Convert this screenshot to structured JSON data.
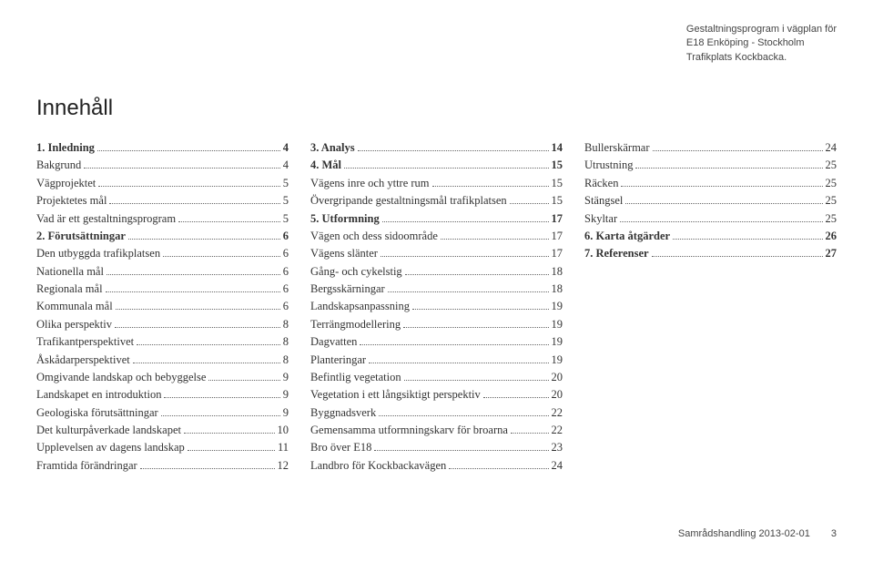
{
  "header": {
    "line1": "Gestaltningsprogram i vägplan för",
    "line2": "E18 Enköping - Stockholm",
    "line3": "Trafikplats Kockbacka."
  },
  "title": "Innehåll",
  "toc": {
    "col1": [
      {
        "label": "1. Inledning",
        "page": "4",
        "bold": true
      },
      {
        "label": "Bakgrund",
        "page": "4"
      },
      {
        "label": "Vägprojektet",
        "page": "5"
      },
      {
        "label": "Projektetes mål",
        "page": "5"
      },
      {
        "label": "Vad är ett gestaltningsprogram",
        "page": "5"
      },
      {
        "label": "2. Förutsättningar",
        "page": "6",
        "bold": true
      },
      {
        "label": "Den utbyggda trafikplatsen",
        "page": "6"
      },
      {
        "label": "Nationella mål",
        "page": "6"
      },
      {
        "label": "Regionala mål",
        "page": "6"
      },
      {
        "label": "Kommunala mål",
        "page": "6"
      },
      {
        "label": "Olika perspektiv",
        "page": "8"
      },
      {
        "label": "Trafikantperspektivet",
        "page": "8"
      },
      {
        "label": "Åskådarperspektivet",
        "page": "8"
      },
      {
        "label": "Omgivande landskap och bebyggelse",
        "page": "9"
      },
      {
        "label": "Landskapet en introduktion",
        "page": "9"
      },
      {
        "label": "Geologiska förutsättningar",
        "page": "9"
      },
      {
        "label": "Det kulturpåverkade landskapet",
        "page": "10"
      },
      {
        "label": "Upplevelsen av dagens landskap",
        "page": "11"
      },
      {
        "label": "Framtida förändringar",
        "page": "12"
      }
    ],
    "col2": [
      {
        "label": "3. Analys",
        "page": "14",
        "bold": true
      },
      {
        "label": "4. Mål",
        "page": "15",
        "bold": true
      },
      {
        "label": "Vägens inre och yttre rum",
        "page": "15"
      },
      {
        "label": "Övergripande gestaltningsmål trafikplatsen",
        "page": "15"
      },
      {
        "label": "5. Utformning",
        "page": "17",
        "bold": true
      },
      {
        "label": "Vägen och dess sidoområde",
        "page": "17"
      },
      {
        "label": "Vägens slänter",
        "page": "17"
      },
      {
        "label": "Gång- och cykelstig",
        "page": "18"
      },
      {
        "label": "Bergsskärningar",
        "page": "18"
      },
      {
        "label": "Landskapsanpassning",
        "page": "19"
      },
      {
        "label": "Terrängmodellering",
        "page": "19"
      },
      {
        "label": "Dagvatten",
        "page": "19"
      },
      {
        "label": "Planteringar",
        "page": "19"
      },
      {
        "label": "Befintlig vegetation",
        "page": "20"
      },
      {
        "label": "Vegetation i ett långsiktigt perspektiv",
        "page": "20"
      },
      {
        "label": "Byggnadsverk",
        "page": "22"
      },
      {
        "label": "Gemensamma utformningskarv för broarna",
        "page": "22"
      },
      {
        "label": "Bro över E18",
        "page": "23"
      },
      {
        "label": "Landbro för Kockbackavägen",
        "page": "24"
      }
    ],
    "col3": [
      {
        "label": "Bullerskärmar",
        "page": "24"
      },
      {
        "label": "Utrustning",
        "page": "25"
      },
      {
        "label": "Räcken",
        "page": "25"
      },
      {
        "label": "Stängsel",
        "page": "25"
      },
      {
        "label": "Skyltar",
        "page": "25"
      },
      {
        "label": "6. Karta åtgärder",
        "page": "26",
        "bold": true
      },
      {
        "label": "7. Referenser",
        "page": "27",
        "bold": true
      }
    ]
  },
  "footer": {
    "text": "Samrådshandling 2013-02-01",
    "page": "3"
  }
}
